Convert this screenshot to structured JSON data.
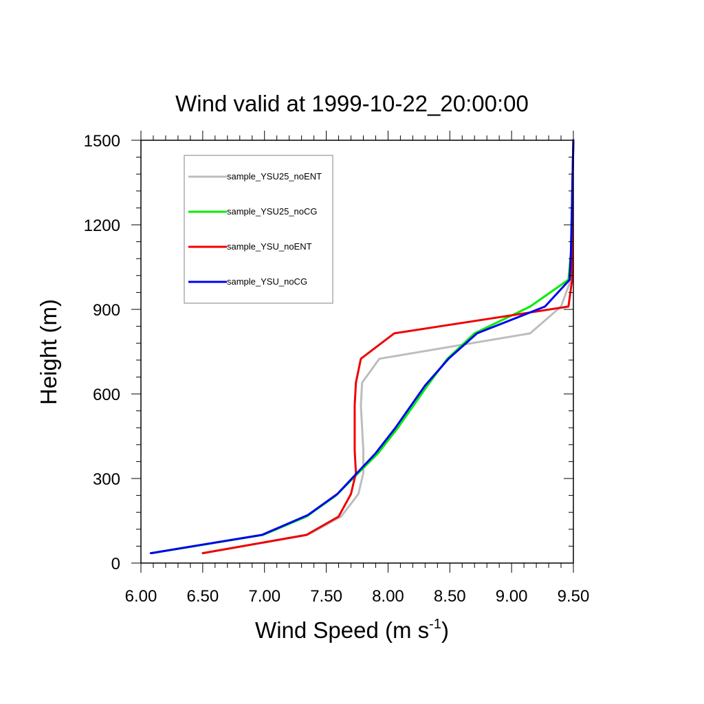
{
  "chart_data": {
    "type": "line",
    "title": "Wind valid at 1999-10-22_20:00:00",
    "xlabel": "Wind Speed (m s",
    "xlabel_sup": "-1",
    "xlabel_close": ")",
    "ylabel": "Height (m)",
    "xlim": [
      6.0,
      9.5
    ],
    "ylim": [
      0,
      1500
    ],
    "x_ticks": [
      "6.00",
      "6.50",
      "7.00",
      "7.50",
      "8.00",
      "8.50",
      "9.00",
      "9.50"
    ],
    "y_ticks": [
      "0",
      "300",
      "600",
      "900",
      "1200",
      "1500"
    ],
    "legend_position": "top-left",
    "series": [
      {
        "name": "sample_YSU25_noENT",
        "color": "#bdbdbd",
        "x": [
          6.5,
          7.35,
          7.62,
          7.76,
          7.8,
          7.8,
          7.79,
          7.78,
          7.79,
          7.93,
          9.15,
          9.4,
          9.48,
          9.49,
          9.49,
          9.5
        ],
        "y": [
          35,
          100,
          165,
          245,
          320,
          400,
          480,
          560,
          640,
          725,
          815,
          910,
          1005,
          1100,
          1300,
          1500
        ]
      },
      {
        "name": "sample_YSU25_noCG",
        "color": "#00ee00",
        "x": [
          6.09,
          6.99,
          7.34,
          7.58,
          7.92,
          8.08,
          8.32,
          8.48,
          8.7,
          9.15,
          9.46,
          9.48,
          9.49,
          9.5
        ],
        "y": [
          35,
          100,
          165,
          240,
          390,
          480,
          630,
          725,
          815,
          910,
          1005,
          1100,
          1300,
          1500
        ]
      },
      {
        "name": "sample_YSU_noENT",
        "color": "#ee0000",
        "x": [
          6.5,
          7.34,
          7.6,
          7.7,
          7.74,
          7.73,
          7.73,
          7.73,
          7.74,
          7.78,
          8.05,
          9.46,
          9.49,
          9.49,
          9.5
        ],
        "y": [
          35,
          100,
          165,
          245,
          320,
          400,
          480,
          560,
          640,
          725,
          815,
          910,
          1005,
          1300,
          1500
        ]
      },
      {
        "name": "sample_YSU_noCG",
        "color": "#0000ee",
        "x": [
          6.08,
          6.98,
          7.35,
          7.59,
          7.9,
          8.06,
          8.3,
          8.49,
          8.72,
          9.27,
          9.47,
          9.48,
          9.49,
          9.5
        ],
        "y": [
          35,
          100,
          170,
          245,
          390,
          480,
          630,
          725,
          815,
          910,
          1005,
          1100,
          1300,
          1500
        ]
      }
    ]
  }
}
